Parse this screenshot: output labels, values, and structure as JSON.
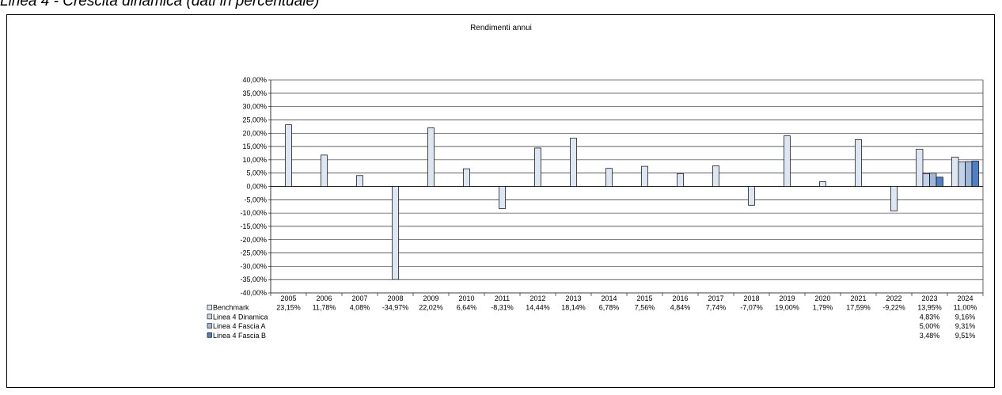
{
  "header": {
    "caption": "Linea 4 - Crescita dinamica (dati in percentuale)"
  },
  "colors": {
    "benchmark": "#dde6f3",
    "dinamica": "#c4d3e8",
    "fascia_a": "#9fb8da",
    "fascia_b": "#4f7fc4"
  },
  "chart_data": {
    "type": "bar",
    "title": "Rendimenti annui",
    "xlabel": "",
    "ylabel": "",
    "ylim": [
      -40,
      40
    ],
    "yticks": [
      "40,00%",
      "35,00%",
      "30,00%",
      "25,00%",
      "20,00%",
      "15,00%",
      "10,00%",
      "5,00%",
      "0,00%",
      "-5,00%",
      "-10,00%",
      "-15,00%",
      "-20,00%",
      "-25,00%",
      "-30,00%",
      "-35,00%",
      "-40,00%"
    ],
    "grid": true,
    "legend": "data-table",
    "categories": [
      "2005",
      "2006",
      "2007",
      "2008",
      "2009",
      "2010",
      "2011",
      "2012",
      "2013",
      "2014",
      "2015",
      "2016",
      "2017",
      "2018",
      "2019",
      "2020",
      "2021",
      "2022",
      "2023",
      "2024"
    ],
    "series": [
      {
        "name": "Benchmark",
        "values": [
          23.15,
          11.78,
          4.08,
          -34.97,
          22.02,
          6.64,
          -8.31,
          14.44,
          18.14,
          6.78,
          7.56,
          4.84,
          7.74,
          -7.07,
          19.0,
          1.79,
          17.59,
          -9.22,
          13.95,
          11.0
        ],
        "labels": [
          "23,15%",
          "11,78%",
          "4,08%",
          "-34,97%",
          "22,02%",
          "6,64%",
          "-8,31%",
          "14,44%",
          "18,14%",
          "6,78%",
          "7,56%",
          "4,84%",
          "7,74%",
          "-7,07%",
          "19,00%",
          "1,79%",
          "17,59%",
          "-9,22%",
          "13,95%",
          "11,00%"
        ]
      },
      {
        "name": "Linea 4 Dinamica",
        "values": [
          null,
          null,
          null,
          null,
          null,
          null,
          null,
          null,
          null,
          null,
          null,
          null,
          null,
          null,
          null,
          null,
          null,
          null,
          4.83,
          9.16
        ],
        "labels": [
          "",
          "",
          "",
          "",
          "",
          "",
          "",
          "",
          "",
          "",
          "",
          "",
          "",
          "",
          "",
          "",
          "",
          "",
          "4,83%",
          "9,16%"
        ]
      },
      {
        "name": "Linea 4 Fascia A",
        "values": [
          null,
          null,
          null,
          null,
          null,
          null,
          null,
          null,
          null,
          null,
          null,
          null,
          null,
          null,
          null,
          null,
          null,
          null,
          5.0,
          9.31
        ],
        "labels": [
          "",
          "",
          "",
          "",
          "",
          "",
          "",
          "",
          "",
          "",
          "",
          "",
          "",
          "",
          "",
          "",
          "",
          "",
          "5,00%",
          "9,31%"
        ]
      },
      {
        "name": "Linea 4 Fascia B",
        "values": [
          null,
          null,
          null,
          null,
          null,
          null,
          null,
          null,
          null,
          null,
          null,
          null,
          null,
          null,
          null,
          null,
          null,
          null,
          3.48,
          9.51
        ],
        "labels": [
          "",
          "",
          "",
          "",
          "",
          "",
          "",
          "",
          "",
          "",
          "",
          "",
          "",
          "",
          "",
          "",
          "",
          "",
          "3,48%",
          "9,51%"
        ]
      }
    ]
  }
}
